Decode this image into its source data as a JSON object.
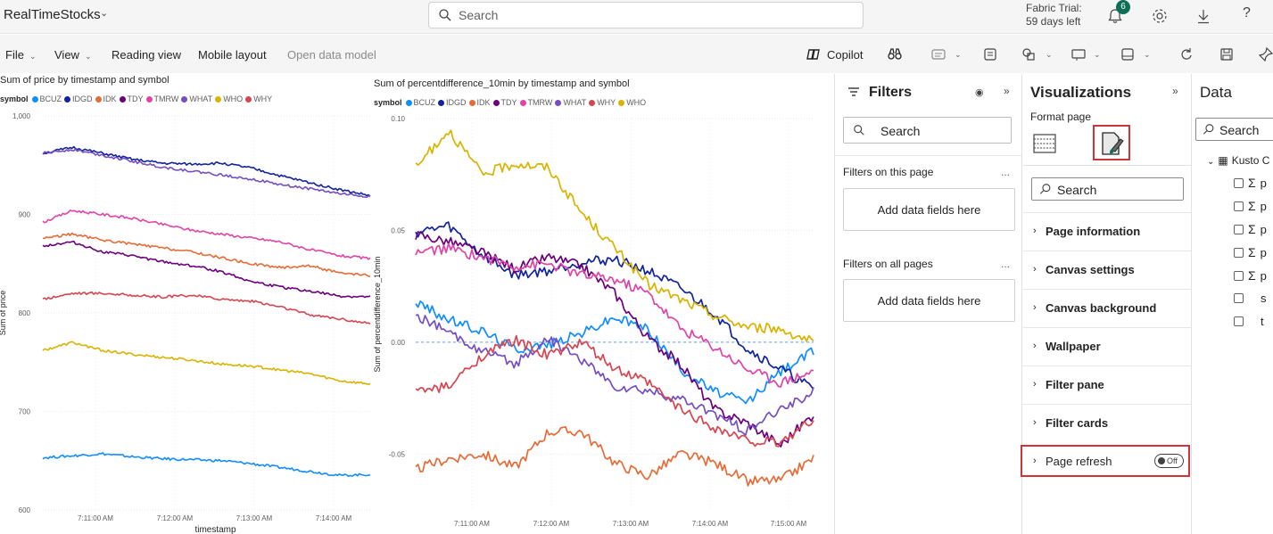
{
  "topbar": {
    "app_title": "RealTimeStocks",
    "search_placeholder": "Search",
    "trial_line1": "Fabric Trial:",
    "trial_line2": "59 days left",
    "notification_count": "6",
    "help_label": "?"
  },
  "ribbon": {
    "file": "File",
    "view": "View",
    "reading_view": "Reading view",
    "mobile_layout": "Mobile layout",
    "open_data_model": "Open data model",
    "copilot": "Copilot"
  },
  "colors": {
    "BCUZ": "#118dff",
    "IDGD": "#12239e",
    "IDK": "#e66c37",
    "TDY": "#6b007b",
    "TMRW": "#e044a7",
    "WHAT": "#744ec2",
    "WHO": "#d9b300",
    "WHY": "#d64550",
    "red_highlight": "#d13438"
  },
  "chart_data": [
    {
      "type": "line",
      "title": "Sum of price by timestamp and symbol",
      "legend_title": "symbol",
      "legend_position": "top-left",
      "xlabel": "timestamp",
      "ylabel": "Sum of price",
      "x_ticks": [
        "7:11:00 AM",
        "7:12:00 AM",
        "7:13:00 AM",
        "7:14:00 AM"
      ],
      "y_ticks": [
        "1,000",
        "900",
        "800",
        "700",
        "600"
      ],
      "ylim": [
        600,
        1000
      ],
      "grid": true,
      "series": [
        {
          "name": "BCUZ",
          "values": [
            653,
            655,
            657,
            654,
            652,
            651,
            650,
            647,
            643,
            639,
            635,
            636
          ]
        },
        {
          "name": "IDGD",
          "values": [
            962,
            968,
            962,
            956,
            952,
            951,
            952,
            947,
            939,
            932,
            925,
            919
          ]
        },
        {
          "name": "IDK",
          "values": [
            876,
            880,
            874,
            870,
            866,
            862,
            856,
            850,
            846,
            848,
            840,
            838
          ]
        },
        {
          "name": "TDY",
          "values": [
            868,
            872,
            862,
            858,
            852,
            848,
            842,
            832,
            826,
            822,
            817,
            816
          ]
        },
        {
          "name": "TMRW",
          "values": [
            892,
            904,
            900,
            896,
            890,
            884,
            880,
            876,
            872,
            864,
            858,
            855
          ]
        },
        {
          "name": "WHAT",
          "values": [
            962,
            966,
            960,
            954,
            948,
            944,
            940,
            936,
            930,
            926,
            921,
            918
          ]
        },
        {
          "name": "WHO",
          "values": [
            762,
            770,
            762,
            758,
            755,
            752,
            748,
            746,
            742,
            738,
            731,
            728
          ]
        },
        {
          "name": "WHY",
          "values": [
            814,
            820,
            820,
            818,
            816,
            818,
            814,
            812,
            806,
            798,
            794,
            789
          ]
        }
      ]
    },
    {
      "type": "line",
      "title": "Sum of percentdifference_10min by timestamp and symbol",
      "legend_title": "symbol",
      "legend_position": "top-left",
      "xlabel": "",
      "ylabel": "Sum of percentdifference_10min",
      "x_ticks": [
        "7:11:00 AM",
        "7:12:00 AM",
        "7:13:00 AM",
        "7:14:00 AM",
        "7:15:00 AM"
      ],
      "y_ticks": [
        "0.10",
        "0.05",
        "0.00",
        "-0.05"
      ],
      "ylim": [
        -0.075,
        0.1
      ],
      "reference_line": 0.0,
      "grid": true,
      "series": [
        {
          "name": "BCUZ",
          "values": [
            0.018,
            0.01,
            0.005,
            -0.003,
            -0.001,
            0.004,
            0.011,
            0.006,
            -0.012,
            -0.022,
            -0.027,
            -0.013,
            -0.004
          ]
        },
        {
          "name": "IDGD",
          "values": [
            0.049,
            0.052,
            0.039,
            0.03,
            0.032,
            0.036,
            0.037,
            0.032,
            0.024,
            0.013,
            -0.003,
            -0.012,
            -0.021
          ]
        },
        {
          "name": "IDK",
          "values": [
            -0.057,
            -0.052,
            -0.05,
            -0.056,
            -0.04,
            -0.04,
            -0.054,
            -0.06,
            -0.05,
            -0.054,
            -0.062,
            -0.062,
            -0.052
          ]
        },
        {
          "name": "TDY",
          "values": [
            0.048,
            0.045,
            0.04,
            0.033,
            0.038,
            0.034,
            0.022,
            0.002,
            -0.01,
            -0.03,
            -0.036,
            -0.046,
            -0.032
          ]
        },
        {
          "name": "TMRW",
          "values": [
            0.04,
            0.042,
            0.038,
            0.034,
            0.035,
            0.03,
            0.028,
            0.022,
            0.006,
            -0.002,
            -0.012,
            -0.018,
            -0.013
          ]
        },
        {
          "name": "WHAT",
          "values": [
            0.012,
            0.004,
            -0.004,
            -0.01,
            0.002,
            -0.008,
            -0.02,
            -0.022,
            -0.026,
            -0.032,
            -0.04,
            -0.03,
            -0.022
          ]
        },
        {
          "name": "WHY",
          "values": [
            -0.022,
            -0.02,
            -0.006,
            0.001,
            -0.006,
            0.0,
            -0.012,
            -0.018,
            -0.03,
            -0.038,
            -0.044,
            -0.045,
            -0.034
          ]
        },
        {
          "name": "WHO",
          "values": [
            0.078,
            0.095,
            0.075,
            0.08,
            0.078,
            0.058,
            0.042,
            0.026,
            0.019,
            0.012,
            0.007,
            0.006,
            0.0
          ]
        }
      ]
    }
  ],
  "filters": {
    "title": "Filters",
    "search": "Search",
    "on_this_page": "Filters on this page",
    "on_all_pages": "Filters on all pages",
    "add_fields_1": "Add data fields here",
    "add_fields_2": "Add data fields here",
    "more": "..."
  },
  "visualizations": {
    "title": "Visualizations",
    "format_page": "Format page",
    "search": "Search",
    "sections": [
      "Page information",
      "Canvas settings",
      "Canvas background",
      "Wallpaper",
      "Filter pane",
      "Filter cards",
      "Page refresh"
    ],
    "page_refresh_toggle": "Off"
  },
  "data": {
    "title": "Data",
    "search": "Search",
    "table_name": "Kusto C",
    "fields": [
      "p",
      "p",
      "p",
      "p",
      "p",
      "s",
      "t"
    ]
  }
}
